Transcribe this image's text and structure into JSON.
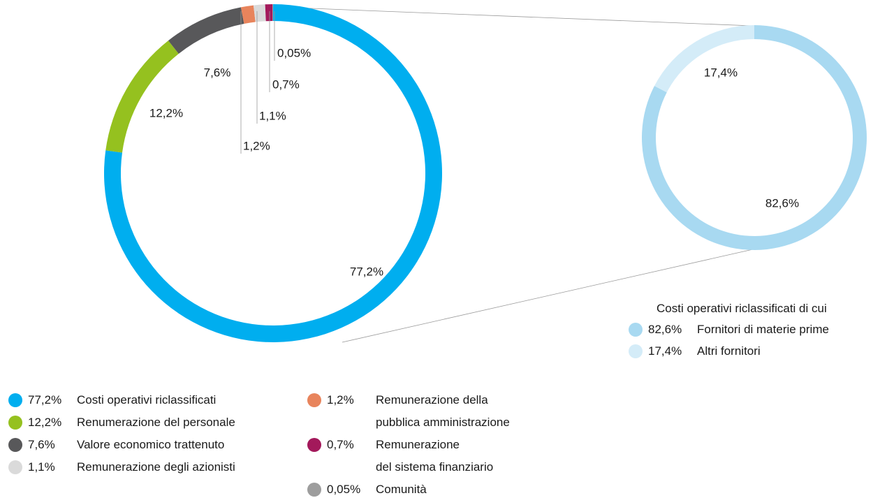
{
  "chart_data": [
    {
      "type": "pie",
      "categories": [
        "Costi operativi riclassificati",
        "Renumerazione del personale",
        "Valore economico trattenuto",
        "Remunerazione della\npubblica amministrazione",
        "Remunerazione degli azionisti",
        "Remunerazione\ndel sistema finanziario",
        "Comunità"
      ],
      "values": [
        77.2,
        12.2,
        7.6,
        1.2,
        1.1,
        0.7,
        0.05
      ],
      "value_labels": [
        "77,2%",
        "12,2%",
        "7,6%",
        "1,2%",
        "1,1%",
        "0,7%",
        "0,05%"
      ],
      "colors": [
        "#00aeef",
        "#95c11f",
        "#58585a",
        "#e8845c",
        "#dadada",
        "#a3195b",
        "#9d9d9d"
      ]
    },
    {
      "type": "pie",
      "title": "Costi operativi riclassificati di cui",
      "categories": [
        "Fornitori di materie prime",
        "Altri fornitori"
      ],
      "values": [
        82.6,
        17.4
      ],
      "value_labels": [
        "82,6%",
        "17,4%"
      ],
      "colors": [
        "#a8d9f1",
        "#d4ecf8"
      ]
    }
  ]
}
